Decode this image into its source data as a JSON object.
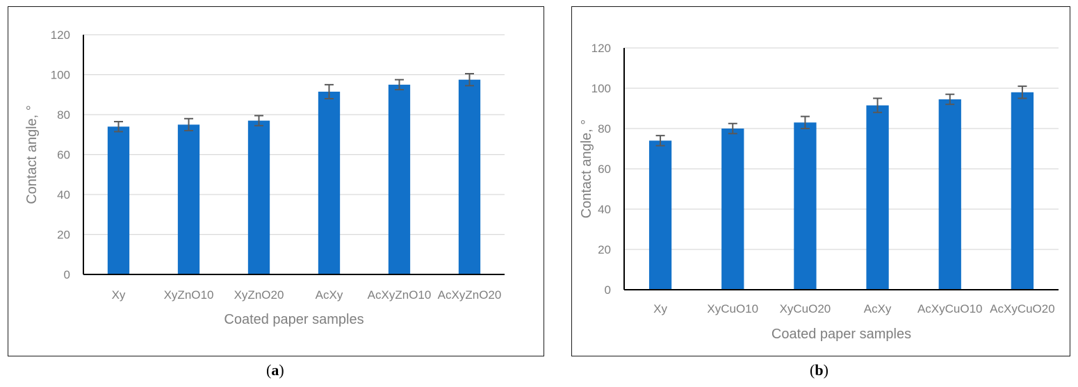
{
  "captions": {
    "a_letter": "a",
    "b_letter": "b"
  },
  "colors": {
    "bar": "#1271c9",
    "grid": "#d9d9d9",
    "axis": "#000000",
    "text": "#7f7f7f",
    "error": "#595959"
  },
  "chart_data": [
    {
      "type": "bar",
      "panel": "a",
      "title": "",
      "xlabel": "Coated paper samples",
      "ylabel": "Contact angle, °",
      "ylim": [
        0,
        120
      ],
      "yticks": [
        0,
        20,
        40,
        60,
        80,
        100,
        120
      ],
      "grid": true,
      "categories": [
        "Xy",
        "XyZnO10",
        "XyZnO20",
        "AcXy",
        "AcXyZnO10",
        "AcXyZnO20"
      ],
      "values": [
        74,
        75,
        77,
        91.5,
        95,
        97.5
      ],
      "errors": [
        2.5,
        3,
        2.5,
        3.5,
        2.5,
        3
      ]
    },
    {
      "type": "bar",
      "panel": "b",
      "title": "",
      "xlabel": "Coated paper samples",
      "ylabel": "Contact angle, °",
      "ylim": [
        0,
        120
      ],
      "yticks": [
        0,
        20,
        40,
        60,
        80,
        100,
        120
      ],
      "grid": true,
      "categories": [
        "Xy",
        "XyCuO10",
        "XyCuO20",
        "AcXy",
        "AcXyCuO10",
        "AcXyCuO20"
      ],
      "values": [
        74,
        80,
        83,
        91.5,
        94.5,
        98
      ],
      "errors": [
        2.5,
        2.5,
        3,
        3.5,
        2.5,
        3
      ]
    }
  ]
}
